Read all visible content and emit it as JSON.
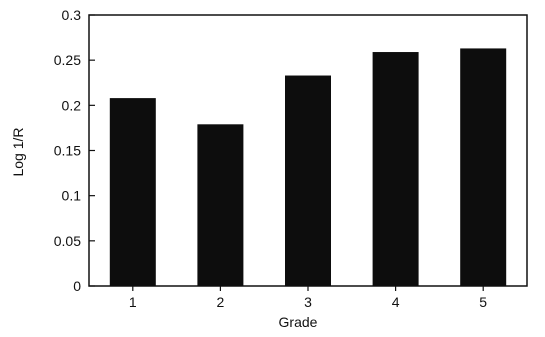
{
  "chart_data": {
    "type": "bar",
    "categories": [
      "1",
      "2",
      "3",
      "4",
      "5"
    ],
    "values": [
      0.208,
      0.179,
      0.233,
      0.259,
      0.263
    ],
    "title": "",
    "xlabel": "Grade",
    "ylabel": "Log 1/R",
    "ylim": [
      0,
      0.3
    ],
    "yticks": [
      "0",
      "0.05",
      "0.1",
      "0.15",
      "0.2",
      "0.25",
      "0.3"
    ],
    "grid": false,
    "legend": "none",
    "bar_color": "#0d0d0d",
    "axis_color": "#111111"
  }
}
